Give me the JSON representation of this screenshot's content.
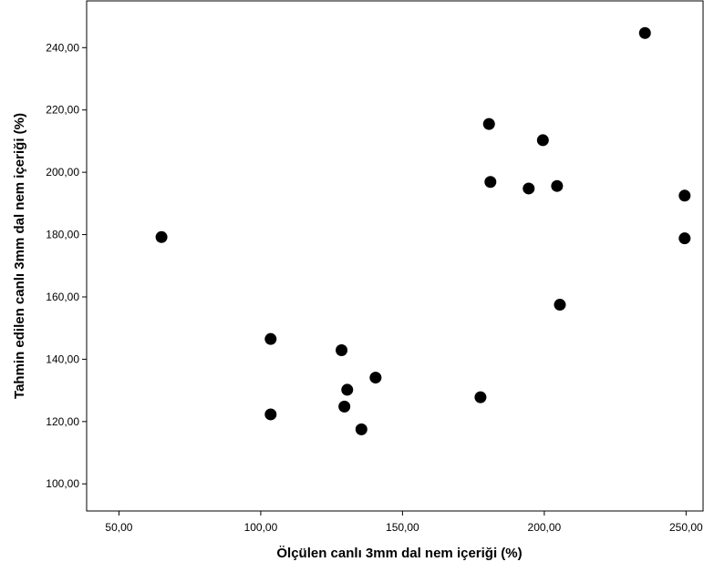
{
  "chart_data": {
    "type": "scatter",
    "title": "",
    "xlabel": "Ölçülen canlı 3mm dal nem içeriği (%)",
    "ylabel": "Tahmin edilen canlı 3mm dal nem içeriği (%)",
    "xlim": [
      38.6,
      256
    ],
    "ylim": [
      91.3,
      255
    ],
    "xticks": [
      50,
      100,
      150,
      200,
      250
    ],
    "xtick_labels": [
      "50,00",
      "100,00",
      "150,00",
      "200,00",
      "250,00"
    ],
    "yticks": [
      100,
      120,
      140,
      160,
      180,
      200,
      220,
      240
    ],
    "ytick_labels": [
      "100,00",
      "120,00",
      "140,00",
      "160,00",
      "180,00",
      "200,00",
      "220,00",
      "240,00"
    ],
    "grid": false,
    "legend": "none",
    "marker_color": "#000000",
    "points": [
      {
        "x": 65,
        "y": 179.2
      },
      {
        "x": 103.5,
        "y": 146.5
      },
      {
        "x": 103.5,
        "y": 122.3
      },
      {
        "x": 128.5,
        "y": 142.9
      },
      {
        "x": 130.5,
        "y": 130.2
      },
      {
        "x": 129.5,
        "y": 124.8
      },
      {
        "x": 135.5,
        "y": 117.5
      },
      {
        "x": 140.5,
        "y": 134.1
      },
      {
        "x": 177.5,
        "y": 127.8
      },
      {
        "x": 180.5,
        "y": 215.5
      },
      {
        "x": 181,
        "y": 196.9
      },
      {
        "x": 194.5,
        "y": 194.8
      },
      {
        "x": 199.5,
        "y": 210.3
      },
      {
        "x": 204.5,
        "y": 195.6
      },
      {
        "x": 205.5,
        "y": 157.5
      },
      {
        "x": 235.5,
        "y": 244.7
      },
      {
        "x": 249.5,
        "y": 192.5
      },
      {
        "x": 249.5,
        "y": 178.8
      }
    ]
  }
}
